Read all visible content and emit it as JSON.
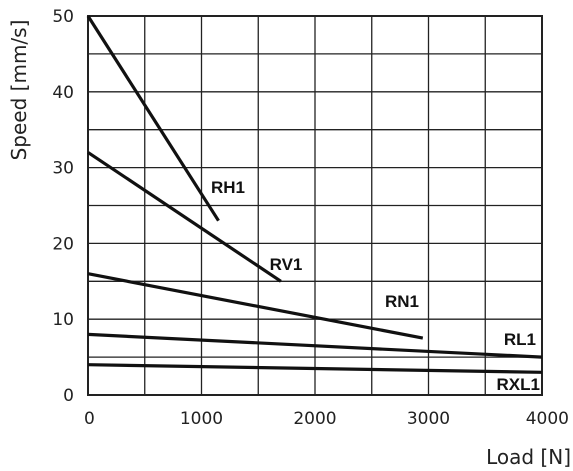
{
  "chart_data": {
    "type": "line",
    "title": "",
    "xlabel": "Load [N]",
    "ylabel": "Speed [mm/s]",
    "xlim": [
      0,
      4000
    ],
    "ylim": [
      0,
      50
    ],
    "x_ticks": [
      0,
      1000,
      2000,
      3000,
      4000
    ],
    "x_tick_labels": [
      "0",
      "1000",
      "2000",
      "3000",
      "4000"
    ],
    "y_ticks": [
      0,
      10,
      20,
      30,
      40,
      50
    ],
    "y_tick_labels": [
      "0",
      "10",
      "20",
      "30",
      "40",
      "50"
    ],
    "grid": true,
    "legend": "none (series labeled inline)",
    "series": [
      {
        "name": "RH1",
        "x": [
          0,
          1150
        ],
        "y": [
          50,
          23
        ]
      },
      {
        "name": "RV1",
        "x": [
          0,
          1700
        ],
        "y": [
          32,
          15
        ]
      },
      {
        "name": "RN1",
        "x": [
          0,
          2950
        ],
        "y": [
          16,
          7.5
        ]
      },
      {
        "name": "RL1",
        "x": [
          0,
          4000
        ],
        "y": [
          8,
          5
        ]
      },
      {
        "name": "RXL1",
        "x": [
          0,
          4000
        ],
        "y": [
          4,
          3
        ]
      }
    ]
  }
}
